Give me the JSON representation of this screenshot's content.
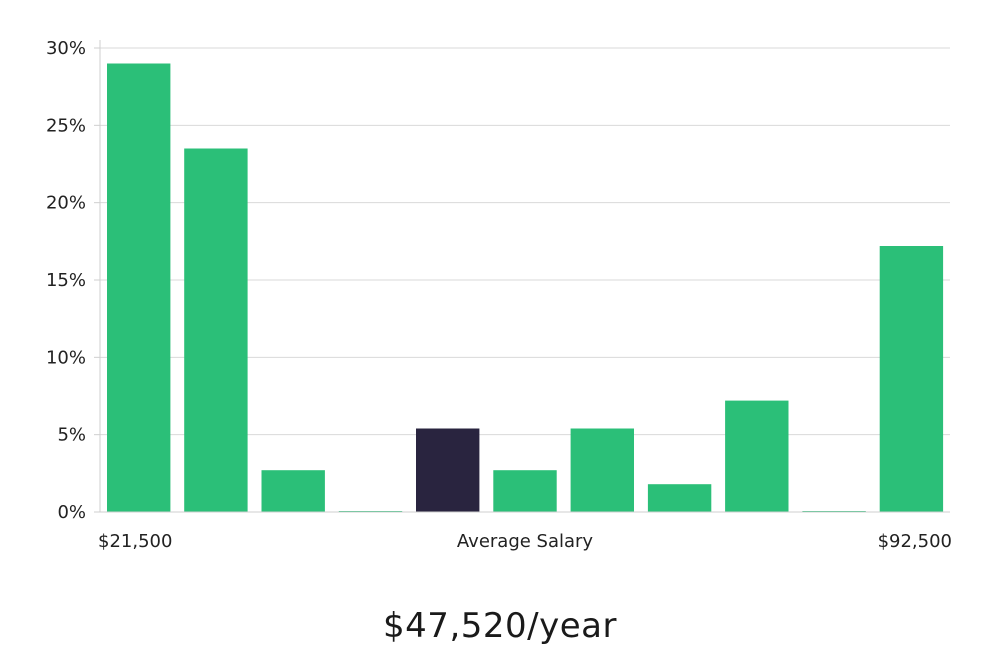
{
  "chart_data": {
    "type": "bar",
    "title": "",
    "xlabel": "Average Salary",
    "x_min_label": "$21,500",
    "x_max_label": "$92,500",
    "ylabel": "",
    "ylim": [
      0,
      30
    ],
    "y_ticks": [
      0,
      5,
      10,
      15,
      20,
      25,
      30
    ],
    "y_tick_labels": [
      "0%",
      "5%",
      "10%",
      "15%",
      "20%",
      "25%",
      "30%"
    ],
    "grid": true,
    "values": [
      29.0,
      23.5,
      2.7,
      0.05,
      5.4,
      2.7,
      5.4,
      1.8,
      7.2,
      0.05,
      17.2
    ],
    "highlight_index": 4,
    "colors": {
      "bar": "#2bbf78",
      "highlight": "#29243f",
      "grid": "#d9d9d9",
      "axis": "#cfcfcf"
    }
  },
  "summary": {
    "salary_text": "$47,520/year"
  }
}
